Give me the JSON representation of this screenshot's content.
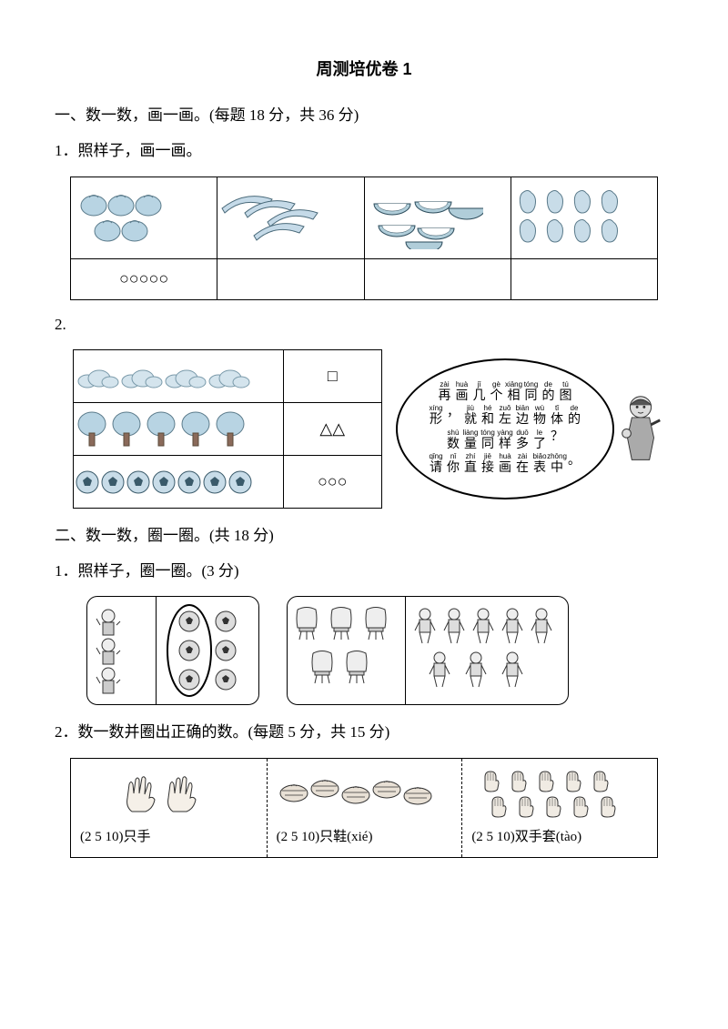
{
  "title": "周测培优卷 1",
  "section1": {
    "heading": "一、数一数，画一画。(每题 18 分，共 36 分)",
    "q1": {
      "heading": "1．照样子，画一画。",
      "items": [
        {
          "name": "tomatoes",
          "count": 5,
          "color": "#b8d4e3",
          "stroke": "#5a7a8a"
        },
        {
          "name": "cucumbers",
          "count": 4,
          "color": "#c5dae8",
          "stroke": "#4a6a7a"
        },
        {
          "name": "watermelons",
          "count": 6,
          "color": "#b0cdd9",
          "stroke": "#2a4a5a"
        },
        {
          "name": "pears",
          "count": 8,
          "color": "#c8dce8",
          "stroke": "#5a7a8a"
        }
      ],
      "example_circles": 5
    },
    "q2": {
      "heading": "2.",
      "rows": [
        {
          "name": "clouds",
          "count": 4,
          "shape": "□",
          "shape_count": 1,
          "color": "#d4e4ed"
        },
        {
          "name": "trees",
          "count": 5,
          "shape": "△",
          "shape_count": 2,
          "color": "#b8d4e3"
        },
        {
          "name": "balls",
          "count": 7,
          "shape": "○",
          "shape_count": 3,
          "color": "#c8dce8"
        }
      ],
      "hint": {
        "lines": [
          [
            [
              "zài",
              "再"
            ],
            [
              "huà",
              "画"
            ],
            [
              "jǐ",
              "几"
            ],
            [
              "gè",
              "个"
            ],
            [
              "xiāng",
              "相"
            ],
            [
              "tóng",
              "同"
            ],
            [
              "de",
              "的"
            ],
            [
              "tú",
              "图"
            ]
          ],
          [
            [
              "xíng",
              "形"
            ],
            [
              "",
              "，"
            ],
            [
              "jiù",
              "就"
            ],
            [
              "hé",
              "和"
            ],
            [
              "zuǒ",
              "左"
            ],
            [
              "biān",
              "边"
            ],
            [
              "wù",
              "物"
            ],
            [
              "tǐ",
              "体"
            ],
            [
              "de",
              "的"
            ]
          ],
          [
            [
              "shù",
              "数"
            ],
            [
              "liàng",
              "量"
            ],
            [
              "tóng",
              "同"
            ],
            [
              "yàng",
              "样"
            ],
            [
              "duō",
              "多"
            ],
            [
              "le",
              "了"
            ],
            [
              "",
              "？"
            ]
          ],
          [
            [
              "qǐng",
              "请"
            ],
            [
              "nǐ",
              "你"
            ],
            [
              "zhí",
              "直"
            ],
            [
              "jiē",
              "接"
            ],
            [
              "huà",
              "画"
            ],
            [
              "zài",
              "在"
            ],
            [
              "biǎo",
              "表"
            ],
            [
              "zhōng",
              "中"
            ],
            [
              "",
              "。"
            ]
          ]
        ]
      }
    }
  },
  "section2": {
    "heading": "二、数一数，圈一圈。(共 18 分)",
    "q1": {
      "heading": "1．照样子，圈一圈。(3 分)",
      "boxA": {
        "left_count": 3,
        "left_name": "children",
        "right_count": 6,
        "right_name": "balls",
        "circled_count": 3
      },
      "boxB": {
        "left_count": 5,
        "left_name": "chairs",
        "right_count": 8,
        "right_name": "people"
      }
    },
    "q2": {
      "heading": "2．数一数并圈出正确的数。(每题 5 分，共 15 分)",
      "cells": [
        {
          "name": "hands",
          "count": 2,
          "label": "(2  5  10)只手"
        },
        {
          "name": "shoes",
          "count": 5,
          "label": "(2  5  10)只鞋(xié)"
        },
        {
          "name": "gloves",
          "count": 10,
          "label": "(2  5  10)双手套(tào)"
        }
      ]
    }
  },
  "colors": {
    "text": "#000000",
    "border": "#000000",
    "bg": "#ffffff",
    "icon_fill": "#c0d8e5",
    "icon_stroke": "#3a5a6a"
  }
}
